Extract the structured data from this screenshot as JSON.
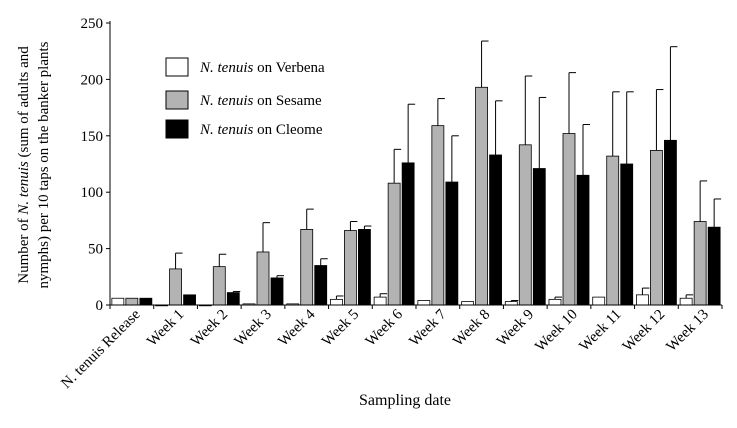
{
  "chart_data": {
    "type": "bar",
    "title": "",
    "xlabel": "Sampling date",
    "ylabel_lines": [
      {
        "pre": "Number of ",
        "italic": "N. tenuis",
        "post": " (sum of adults and"
      },
      {
        "pre": "nymphs) per 10 taps on the banker plants",
        "italic": "",
        "post": ""
      }
    ],
    "ylim": [
      0,
      250
    ],
    "yticks": [
      0,
      50,
      100,
      150,
      200,
      250
    ],
    "categories": [
      "N. tenuis Release",
      "Week 1",
      "Week 2",
      "Week 3",
      "Week 4",
      "Week 5",
      "Week 6",
      "Week 7",
      "Week 8",
      "Week 9",
      "Week 10",
      "Week 11",
      "Week 12",
      "Week 13"
    ],
    "series": [
      {
        "name_italic": "N. tenuis",
        "name_rest": " on Verbena",
        "color": "#ffffff",
        "values": [
          6,
          0,
          0,
          1,
          1,
          5,
          7,
          4,
          3,
          3,
          5,
          7,
          9,
          6
        ],
        "errors": [
          0,
          0,
          0,
          0,
          0,
          3,
          3,
          0,
          0,
          1,
          2,
          0,
          6,
          3
        ]
      },
      {
        "name_italic": "N. tenuis",
        "name_rest": " on Sesame",
        "color": "#b3b3b3",
        "values": [
          6,
          32,
          34,
          47,
          67,
          66,
          108,
          159,
          193,
          142,
          152,
          132,
          137,
          74
        ],
        "errors": [
          0,
          14,
          11,
          26,
          18,
          8,
          30,
          24,
          41,
          61,
          54,
          57,
          54,
          36
        ]
      },
      {
        "name_italic": "N. tenuis",
        "name_rest": " on Cleome",
        "color": "#000000",
        "values": [
          6,
          9,
          11,
          24,
          35,
          67,
          126,
          109,
          133,
          121,
          115,
          125,
          146,
          69
        ],
        "errors": [
          0,
          0,
          1,
          2,
          6,
          3,
          52,
          41,
          48,
          63,
          45,
          64,
          83,
          25
        ]
      }
    ],
    "legend_position": "top-left"
  }
}
